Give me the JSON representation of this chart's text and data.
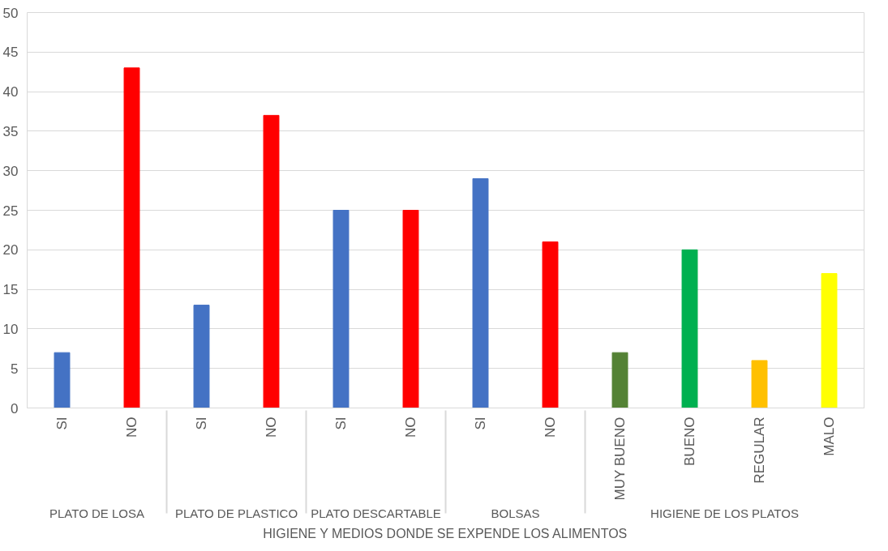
{
  "chart_data": {
    "type": "bar",
    "categories": [
      "SI",
      "NO",
      "SI",
      "NO",
      "SI",
      "NO",
      "SI",
      "NO",
      "MUY BUENO",
      "BUENO",
      "REGULAR",
      "MALO"
    ],
    "values": [
      7,
      43,
      13,
      37,
      25,
      25,
      29,
      21,
      7,
      20,
      6,
      17
    ],
    "colors": [
      "#4472c4",
      "#ff0000",
      "#4472c4",
      "#ff0000",
      "#4472c4",
      "#ff0000",
      "#4472c4",
      "#ff0000",
      "#548235",
      "#00b050",
      "#ffc000",
      "#ffff00"
    ],
    "xlabel": "HIGIENE Y MEDIOS DONDE SE EXPENDE LOS ALIMENTOS",
    "annotations": [
      "PLATO DE LOSA",
      "PLATO DE PLASTICO",
      "PLATO DESCARTABLE",
      "BOLSAS",
      "HIGIENE DE LOS PLATOS"
    ],
    "ylim": [
      0,
      50
    ],
    "yticks": [
      0,
      5,
      10,
      15,
      20,
      25,
      30,
      35,
      40,
      45,
      50
    ],
    "grid": "y"
  }
}
